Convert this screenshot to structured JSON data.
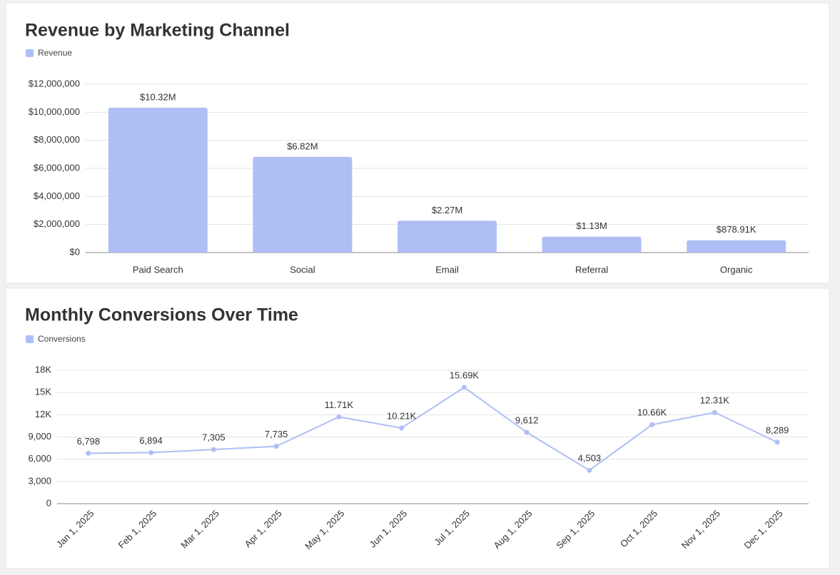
{
  "chart_data": [
    {
      "type": "bar",
      "title": "Revenue by Marketing Channel",
      "categories": [
        "Paid Search",
        "Social",
        "Email",
        "Referral",
        "Organic"
      ],
      "series": [
        {
          "name": "Revenue",
          "color": "#aebff5",
          "values": [
            10320000,
            6820000,
            2270000,
            1130000,
            878910
          ],
          "value_labels": [
            "$10.32M",
            "$6.82M",
            "$2.27M",
            "$1.13M",
            "$878.91K"
          ]
        }
      ],
      "ylim": [
        0,
        12000000
      ],
      "yticks": [
        {
          "value": 0,
          "label": "$0"
        },
        {
          "value": 2000000,
          "label": "$2,000,000"
        },
        {
          "value": 4000000,
          "label": "$4,000,000"
        },
        {
          "value": 6000000,
          "label": "$6,000,000"
        },
        {
          "value": 8000000,
          "label": "$8,000,000"
        },
        {
          "value": 10000000,
          "label": "$10,000,000"
        },
        {
          "value": 12000000,
          "label": "$12,000,000"
        }
      ],
      "grid": true
    },
    {
      "type": "line",
      "title": "Monthly Conversions Over Time",
      "categories": [
        "Jan 1, 2025",
        "Feb 1, 2025",
        "Mar 1, 2025",
        "Apr 1, 2025",
        "May 1, 2025",
        "Jun 1, 2025",
        "Jul 1, 2025",
        "Aug 1, 2025",
        "Sep 1, 2025",
        "Oct 1, 2025",
        "Nov 1, 2025",
        "Dec 1, 2025"
      ],
      "series": [
        {
          "name": "Conversions",
          "color": "#aebff5",
          "values": [
            6798,
            6894,
            7305,
            7735,
            11710,
            10210,
            15690,
            9612,
            4503,
            10660,
            12310,
            8289
          ],
          "value_labels": [
            "6,798",
            "6,894",
            "7,305",
            "7,735",
            "11.71K",
            "10.21K",
            "15.69K",
            "9,612",
            "4,503",
            "10.66K",
            "12.31K",
            "8,289"
          ]
        }
      ],
      "ylim": [
        0,
        18000
      ],
      "yticks": [
        0,
        {
          "value": 3000,
          "label": "3,000"
        },
        {
          "value": 6000,
          "label": "6,000"
        },
        {
          "value": 9000,
          "label": "9,000"
        },
        {
          "value": 12000,
          "label": "12K"
        },
        {
          "value": 15000,
          "label": "15K"
        },
        {
          "value": 18000,
          "label": "18K"
        }
      ],
      "grid": true
    }
  ]
}
